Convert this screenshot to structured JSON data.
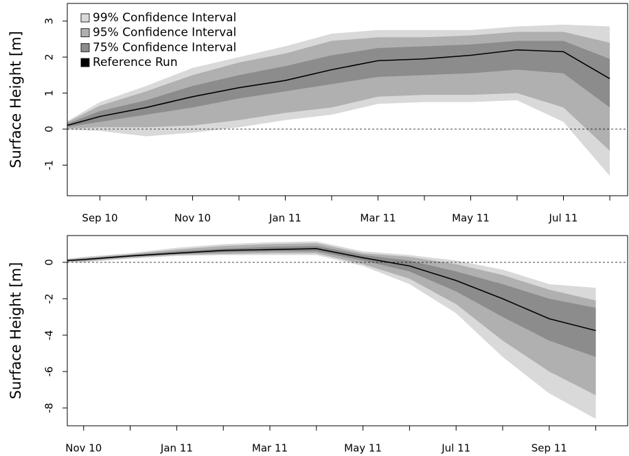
{
  "chart_data": [
    {
      "type": "area",
      "ylabel": "Surface Height [m]",
      "legend": "top-left",
      "hline": 0,
      "categories": [
        null,
        "Sep 10",
        null,
        "Nov 10",
        null,
        "Jan 11",
        null,
        "Mar 11",
        null,
        "May 11",
        null,
        "Jul 11",
        null
      ],
      "ylim": [
        -1.85,
        3.49
      ],
      "yticks": [
        -1,
        0,
        1,
        2,
        3
      ],
      "series": [
        {
          "name": "99% Confidence Interval",
          "color": "#d9d9d9",
          "lower": [
            0,
            -0.05,
            -0.2,
            -0.1,
            0.05,
            0.25,
            0.4,
            0.7,
            0.75,
            0.75,
            0.8,
            0.2,
            -1.3
          ],
          "upper": [
            0,
            0.75,
            1.2,
            1.7,
            2.0,
            2.3,
            2.65,
            2.75,
            2.75,
            2.75,
            2.85,
            2.9,
            2.85
          ]
        },
        {
          "name": "95% Confidence Interval",
          "color": "#b0b0b0",
          "lower": [
            0,
            0.05,
            0.05,
            0.1,
            0.25,
            0.45,
            0.6,
            0.9,
            0.95,
            0.95,
            1.0,
            0.6,
            -0.6
          ],
          "upper": [
            0,
            0.65,
            1.05,
            1.5,
            1.85,
            2.1,
            2.45,
            2.55,
            2.55,
            2.6,
            2.7,
            2.7,
            2.4
          ]
        },
        {
          "name": "75% Confidence Interval",
          "color": "#8c8c8c",
          "lower": [
            0,
            0.2,
            0.4,
            0.6,
            0.85,
            1.05,
            1.25,
            1.45,
            1.5,
            1.55,
            1.65,
            1.55,
            0.6
          ],
          "upper": [
            0,
            0.5,
            0.8,
            1.2,
            1.5,
            1.75,
            2.05,
            2.25,
            2.3,
            2.35,
            2.45,
            2.45,
            1.95
          ]
        },
        {
          "name": "Reference Run",
          "color": "#000000",
          "values": [
            0,
            0.35,
            0.6,
            0.9,
            1.15,
            1.35,
            1.65,
            1.9,
            1.95,
            2.05,
            2.2,
            2.15,
            1.4
          ]
        }
      ]
    },
    {
      "type": "area",
      "ylabel": "Surface Height [m]",
      "hline": 0,
      "categories": [
        null,
        "Nov 10",
        null,
        "Jan 11",
        null,
        "Mar 11",
        null,
        "May 11",
        null,
        "Jul 11",
        null,
        "Sep 11",
        null
      ],
      "ylim": [
        -8.98,
        1.47
      ],
      "yticks": [
        0,
        -2,
        -4,
        -6,
        -8
      ],
      "series": [
        {
          "color": "#d9d9d9",
          "lower": [
            0,
            0,
            0.2,
            0.35,
            0.4,
            0.4,
            0.4,
            -0.2,
            -1.2,
            -2.8,
            -5.2,
            -7.2,
            -8.6
          ],
          "upper": [
            0,
            0.3,
            0.5,
            0.8,
            1.0,
            1.1,
            1.15,
            0.6,
            0.4,
            0.1,
            -0.4,
            -1.2,
            -1.4
          ]
        },
        {
          "color": "#b0b0b0",
          "lower": [
            0,
            0.05,
            0.25,
            0.4,
            0.45,
            0.5,
            0.5,
            -0.1,
            -0.9,
            -2.3,
            -4.3,
            -6.0,
            -7.3
          ],
          "upper": [
            0,
            0.25,
            0.45,
            0.7,
            0.9,
            1.0,
            1.05,
            0.5,
            0.3,
            -0.1,
            -0.7,
            -1.5,
            -2.1
          ]
        },
        {
          "color": "#8c8c8c",
          "lower": [
            0,
            0.1,
            0.3,
            0.45,
            0.55,
            0.6,
            0.6,
            0.1,
            -0.5,
            -1.6,
            -3.0,
            -4.3,
            -5.2
          ],
          "upper": [
            0,
            0.2,
            0.4,
            0.6,
            0.75,
            0.85,
            0.9,
            0.4,
            0.1,
            -0.5,
            -1.2,
            -2.0,
            -2.5
          ]
        },
        {
          "color": "#000000",
          "values": [
            0,
            0.15,
            0.35,
            0.5,
            0.65,
            0.7,
            0.75,
            0.25,
            -0.2,
            -1.0,
            -2.0,
            -3.1,
            -3.75
          ]
        }
      ]
    }
  ]
}
